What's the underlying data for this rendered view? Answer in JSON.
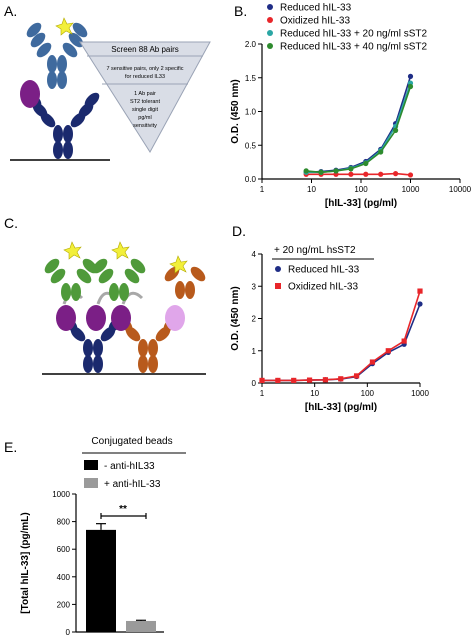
{
  "panels": {
    "a": "A.",
    "b": "B.",
    "c": "C.",
    "d": "D.",
    "e": "E."
  },
  "funnel": {
    "top": "Screen 88 Ab pairs",
    "middle": [
      "7 sensitive pairs, only 2 specific",
      "for reduced IL33"
    ],
    "bottom": [
      "1 Ab pair",
      "ST2 tolerant",
      "single digit",
      "pg/ml",
      "sensitivity"
    ]
  },
  "chart_data": [
    {
      "id": "B",
      "type": "line",
      "xscale": "log",
      "xlim": [
        1,
        10000
      ],
      "ylim": [
        0.0,
        2.0
      ],
      "xticks": [
        "1",
        "10",
        "100",
        "1000",
        "10000"
      ],
      "yticks": [
        "0.0",
        "0.5",
        "1.0",
        "1.5",
        "2.0"
      ],
      "xlabel": "[hIL-33] (pg/ml)",
      "ylabel": "O.D. (450 nm)",
      "legend_position": "top",
      "series": [
        {
          "name": "Reduced hIL-33",
          "color": "#1f2d86",
          "marker": "circle",
          "x": [
            7.8,
            15.6,
            31.25,
            62.5,
            125,
            250,
            500,
            1000
          ],
          "y": [
            0.1,
            0.11,
            0.13,
            0.17,
            0.26,
            0.44,
            0.82,
            1.52
          ]
        },
        {
          "name": "Oxidized hIL-33",
          "color": "#e8262a",
          "marker": "circle",
          "x": [
            7.8,
            15.6,
            31.25,
            62.5,
            125,
            250,
            500,
            1000
          ],
          "y": [
            0.07,
            0.07,
            0.07,
            0.07,
            0.07,
            0.07,
            0.08,
            0.06
          ]
        },
        {
          "name": "Reduced hIL-33 +  20 ng/ml sST2",
          "color": "#2aa6a4",
          "marker": "circle",
          "x": [
            7.8,
            15.6,
            31.25,
            62.5,
            125,
            250,
            500,
            1000
          ],
          "y": [
            0.1,
            0.1,
            0.12,
            0.16,
            0.24,
            0.42,
            0.78,
            1.42
          ]
        },
        {
          "name": "Reduced hIL-33 +  40 ng/ml sST2",
          "color": "#2e8b2e",
          "marker": "circle",
          "x": [
            7.8,
            15.6,
            31.25,
            62.5,
            125,
            250,
            500,
            1000
          ],
          "y": [
            0.12,
            0.1,
            0.12,
            0.15,
            0.23,
            0.4,
            0.72,
            1.37
          ]
        }
      ]
    },
    {
      "id": "D",
      "type": "line",
      "xscale": "log",
      "xlim": [
        1,
        1000
      ],
      "ylim": [
        0,
        4
      ],
      "xticks": [
        "1",
        "10",
        "100",
        "1000"
      ],
      "yticks": [
        "0",
        "1",
        "2",
        "3",
        "4"
      ],
      "xlabel": "[hIL-33] (pg/ml)",
      "ylabel": "O.D. (450 nm)",
      "legend_title": "+ 20 ng/mL hsST2",
      "legend_position": "top-left",
      "series": [
        {
          "name": "Reduced hIL-33",
          "color": "#1f2d86",
          "marker": "circle",
          "x": [
            1,
            2,
            4,
            8,
            16,
            31.25,
            62.5,
            125,
            250,
            500,
            1000
          ],
          "y": [
            0.08,
            0.08,
            0.08,
            0.09,
            0.1,
            0.12,
            0.2,
            0.6,
            0.95,
            1.2,
            2.45
          ]
        },
        {
          "name": "Oxidized hIL-33",
          "color": "#e8262a",
          "marker": "square",
          "x": [
            1,
            2,
            4,
            8,
            16,
            31.25,
            62.5,
            125,
            250,
            500,
            1000
          ],
          "y": [
            0.08,
            0.08,
            0.08,
            0.09,
            0.1,
            0.13,
            0.22,
            0.65,
            1.0,
            1.3,
            2.85
          ]
        }
      ]
    },
    {
      "id": "E",
      "type": "bar",
      "categories": [
        "- anti-hIL33",
        "+ anti-hIL-33"
      ],
      "values": [
        740,
        80
      ],
      "errors": [
        45,
        5
      ],
      "colors": [
        "#000000",
        "#9a9a9a"
      ],
      "ylim": [
        0,
        1000
      ],
      "yticks": [
        "0",
        "200",
        "400",
        "600",
        "800",
        "1000"
      ],
      "ylabel": "[Total hIL-33] (pg/mL)",
      "legend_title": "Conjugated beads",
      "legend_position": "top",
      "significance": "**"
    }
  ]
}
